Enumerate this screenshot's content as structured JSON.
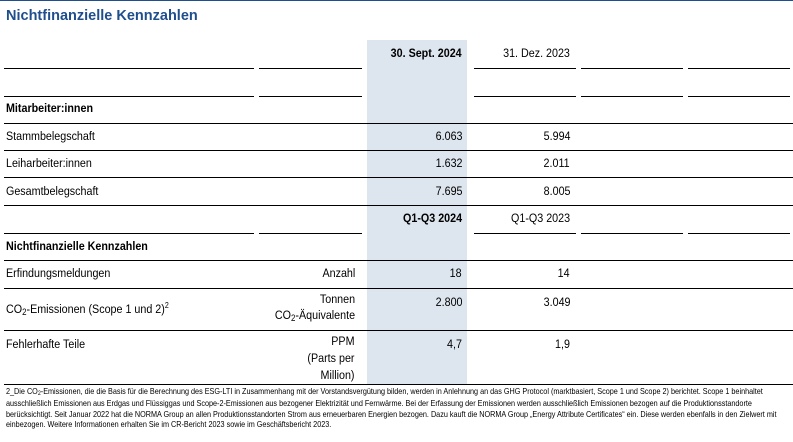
{
  "title": "Nichtfinanzielle Kennzahlen",
  "header": {
    "col1": "30. Sept. 2024",
    "col2": "31. Dez. 2023"
  },
  "section1": {
    "heading": "Mitarbeiter:innen",
    "rows": [
      {
        "label": "Stammbelegschaft",
        "v1": "6.063",
        "v2": "5.994"
      },
      {
        "label": "Leiharbeiter:innen",
        "v1": "1.632",
        "v2": "2.011"
      },
      {
        "label": "Gesamtbelegschaft",
        "v1": "7.695",
        "v2": "8.005"
      }
    ]
  },
  "period_header": {
    "col1": "Q1-Q3 2024",
    "col2": "Q1-Q3 2023"
  },
  "section2": {
    "heading": "Nichtfinanzielle Kennzahlen",
    "row1": {
      "label": "Erfindungsmeldungen",
      "unit": "Anzahl",
      "v1": "18",
      "v2": "14"
    },
    "row2": {
      "label_a": "CO",
      "label_sub": "2",
      "label_b": "-Emissionen (Scope 1 und 2)",
      "label_sup": "2",
      "unit_line1": "Tonnen",
      "unit_line2_a": "CO",
      "unit_line2_sub": "2",
      "unit_line2_b": "-Äquivalente",
      "v1": "2.800",
      "v2": "3.049"
    },
    "row3": {
      "label": "Fehlerhafte Teile",
      "unit_line1": "PPM",
      "unit_line2": "(Parts per",
      "unit_line3": "Million)",
      "v1": "4,7",
      "v2": "1,9"
    }
  },
  "footnote": {
    "part_a": "2_Die CO",
    "part_sub": "2",
    "part_b": "-Emissionen, die die Basis für die Berechnung des ESG-LTI in Zusammenhang mit der Vorstandsvergütung bilden, werden in Anlehnung an das GHG Protocol (marktbasiert, Scope 1 und Scope 2) berichtet. Scope 1 beinhaltet ausschließlich Emissionen aus Erdgas und Flüssiggas und Scope-2-Emissionen aus bezogener Elektrizität und Fernwärme. Bei der Erfassung der Emissionen werden ausschließlich Emissionen bezogen auf die Produktionsstandorte berücksichtigt. Seit Januar 2022 hat die NORMA Group an allen Produktionsstandorten Strom aus erneuerbaren Energien bezogen. Dazu kauft die NORMA Group „Energy Attribute Certificates“ ein. Diese werden ebenfalls in den Zielwert mit einbezogen. Weitere Informationen erhalten Sie im CR-Bericht 2023 sowie im Geschäftsbericht 2023."
  }
}
